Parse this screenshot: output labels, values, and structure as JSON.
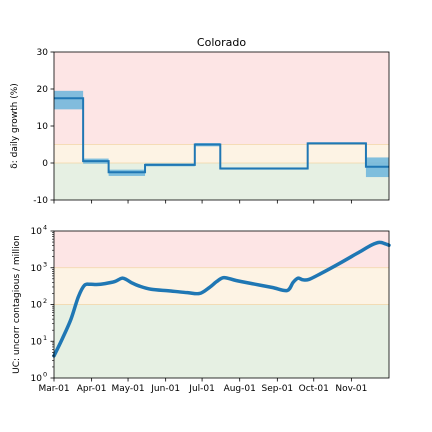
{
  "chart_data": [
    {
      "type": "line",
      "title": "Colorado",
      "xlabel": "",
      "ylabel": "δ: daily growth (%)",
      "ylim": [
        -10,
        30
      ],
      "yticks": [
        -10,
        0,
        10,
        20,
        30
      ],
      "x_tick_labels": [
        "Mar-01",
        "Apr-01",
        "May-01",
        "Jun-01",
        "Jul-01",
        "Aug-01",
        "Sep-01",
        "Oct-01",
        "Nov-01"
      ],
      "x_tick_days": [
        0,
        31,
        61,
        92,
        122,
        153,
        184,
        214,
        245
      ],
      "xlim_days": [
        0,
        276
      ],
      "grid": false,
      "bands": [
        {
          "from": 5,
          "to": 30,
          "color": "#fde5e5"
        },
        {
          "from": 0,
          "to": 5,
          "color": "#fdf3e4"
        },
        {
          "from": -10,
          "to": 0,
          "color": "#e6f0e3"
        }
      ],
      "band_lines": [
        0,
        5
      ],
      "series_color": "#1f77b4",
      "series_fill_color": "#6bb5dc",
      "steps": [
        {
          "start_day": 0,
          "end_day": 24,
          "value": 17.5,
          "lower": 14.5,
          "upper": 19.5
        },
        {
          "start_day": 24,
          "end_day": 45,
          "value": 0.5,
          "lower": -0.2,
          "upper": 1.2
        },
        {
          "start_day": 45,
          "end_day": 75,
          "value": -2.5,
          "lower": -3.5,
          "upper": -1.8
        },
        {
          "start_day": 75,
          "end_day": 116,
          "value": -0.5,
          "lower": -0.9,
          "upper": -0.1
        },
        {
          "start_day": 116,
          "end_day": 137,
          "value": 5.0,
          "lower": 4.5,
          "upper": 5.4
        },
        {
          "start_day": 137,
          "end_day": 209,
          "value": -1.5,
          "lower": -1.8,
          "upper": -1.2
        },
        {
          "start_day": 209,
          "end_day": 257,
          "value": 5.3,
          "lower": 5.0,
          "upper": 5.6
        },
        {
          "start_day": 257,
          "end_day": 276,
          "value": -1.0,
          "lower": -3.8,
          "upper": 1.5
        }
      ]
    },
    {
      "type": "line",
      "xlabel": "",
      "ylabel": "UC: uncorr contagious / million",
      "yscale": "log",
      "ylim": [
        1,
        10000
      ],
      "ytick_values": [
        1,
        10,
        100,
        1000,
        10000
      ],
      "ytick_labels": [
        {
          "base": "10",
          "exp": "0"
        },
        {
          "base": "10",
          "exp": "1"
        },
        {
          "base": "10",
          "exp": "2"
        },
        {
          "base": "10",
          "exp": "3"
        },
        {
          "base": "10",
          "exp": "4"
        }
      ],
      "x_tick_labels": [
        "Mar-01",
        "Apr-01",
        "May-01",
        "Jun-01",
        "Jul-01",
        "Aug-01",
        "Sep-01",
        "Oct-01",
        "Nov-01"
      ],
      "x_tick_days": [
        0,
        31,
        61,
        92,
        122,
        153,
        184,
        214,
        245
      ],
      "xlim_days": [
        0,
        276
      ],
      "grid": false,
      "bands": [
        {
          "from": 1000,
          "to": 10000,
          "color": "#fde5e5"
        },
        {
          "from": 100,
          "to": 1000,
          "color": "#fdf3e4"
        },
        {
          "from": 1,
          "to": 100,
          "color": "#e6f0e3"
        }
      ],
      "band_lines": [
        100,
        1000
      ],
      "series_color": "#1f77b4",
      "x_days": [
        0,
        7,
        14,
        20,
        25,
        30,
        35,
        42,
        50,
        56,
        60,
        64,
        70,
        80,
        95,
        110,
        120,
        128,
        134,
        140,
        150,
        165,
        180,
        192,
        197,
        201,
        205,
        210,
        220,
        235,
        250,
        262,
        268,
        272,
        276
      ],
      "y": [
        4,
        12,
        40,
        160,
        330,
        355,
        350,
        370,
        420,
        520,
        470,
        390,
        320,
        260,
        235,
        210,
        200,
        290,
        420,
        540,
        450,
        360,
        290,
        240,
        400,
        520,
        470,
        480,
        700,
        1300,
        2500,
        4200,
        4900,
        4600,
        4100
      ]
    }
  ]
}
